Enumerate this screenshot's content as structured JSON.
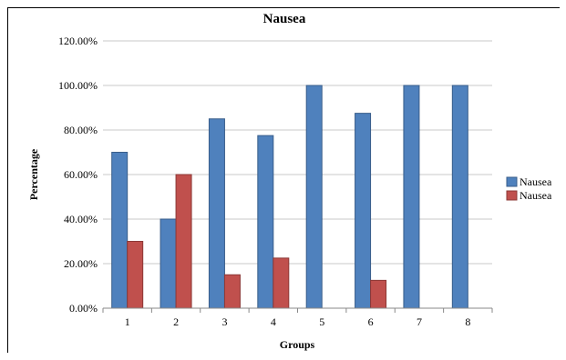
{
  "chart_data": {
    "type": "bar",
    "title": "Nausea",
    "xlabel": "Groups",
    "ylabel": "Percentage",
    "categories": [
      "1",
      "2",
      "3",
      "4",
      "5",
      "6",
      "7",
      "8"
    ],
    "series": [
      {
        "name": "Nausea",
        "color": "#4f81bd",
        "values": [
          70,
          40,
          85,
          77.5,
          100,
          87.5,
          100,
          100
        ]
      },
      {
        "name": "Nausea",
        "color": "#c0504d",
        "values": [
          30,
          60,
          15,
          22.5,
          0,
          12.5,
          0,
          0
        ]
      }
    ],
    "ylim": [
      0,
      120
    ],
    "yticks": [
      "0.00%",
      "20.00%",
      "40.00%",
      "60.00%",
      "80.00%",
      "100.00%",
      "120.00%"
    ],
    "grid": true,
    "legend_position": "right"
  }
}
